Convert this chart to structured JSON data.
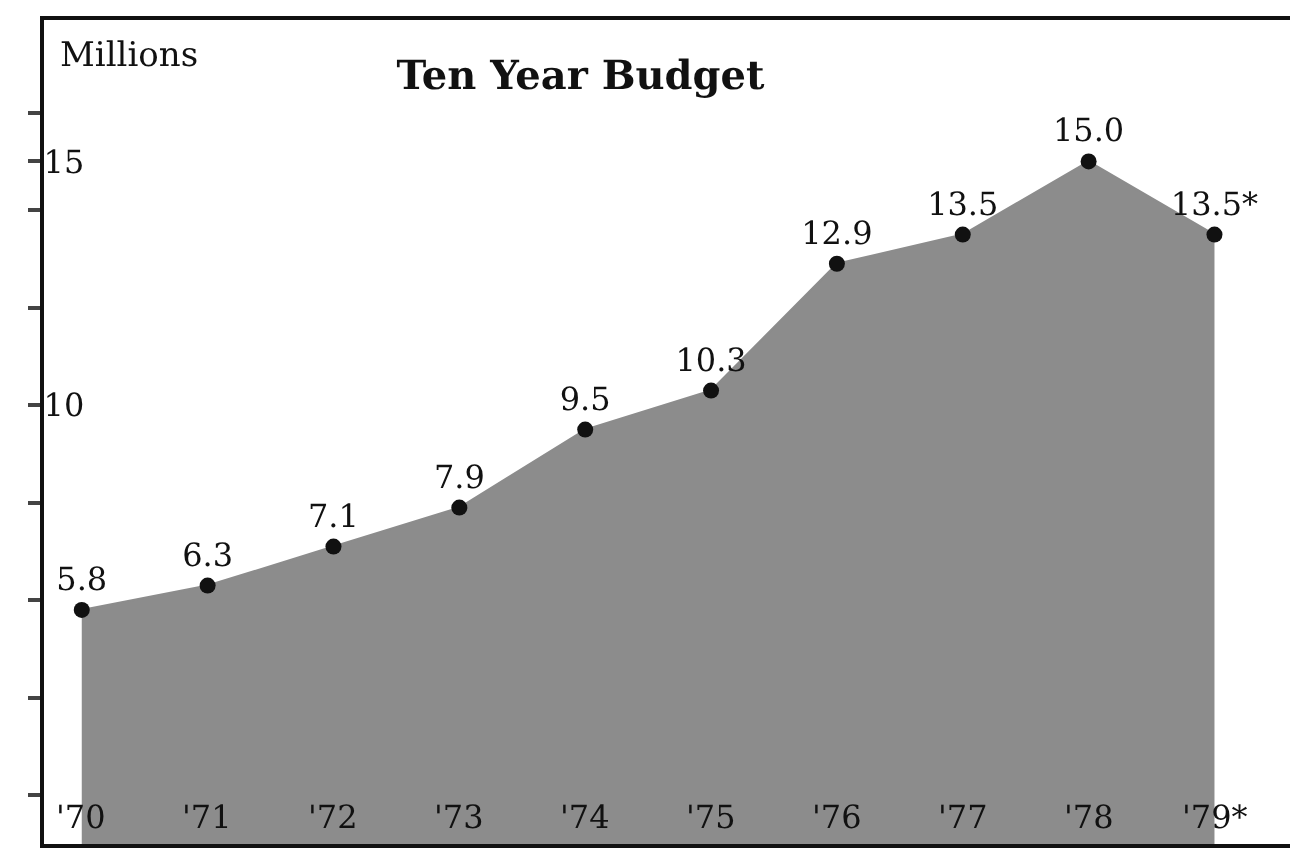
{
  "chart_data": {
    "type": "area",
    "title": "Ten Year Budget",
    "ylabel": "Millions",
    "categories": [
      "'70",
      "'71",
      "'72",
      "'73",
      "'74",
      "'75",
      "'76",
      "'77",
      "'78",
      "'79*"
    ],
    "series": [
      {
        "color": "#8c8c8c",
        "values": [
          5.8,
          6.3,
          7.1,
          7.9,
          9.5,
          10.3,
          12.9,
          13.5,
          15.0,
          13.5
        ],
        "value_labels": [
          "5.8",
          "6.3",
          "7.1",
          "7.9",
          "9.5",
          "10.3",
          "12.9",
          "13.5",
          "15.0",
          "13.5*"
        ]
      }
    ],
    "ylim": [
      1,
      17.9
    ],
    "yticks": [
      {
        "value": 2,
        "label": null
      },
      {
        "value": 4,
        "label": null
      },
      {
        "value": 6,
        "label": null
      },
      {
        "value": 8,
        "label": null
      },
      10,
      {
        "value": 12,
        "label": null
      },
      {
        "value": 14,
        "label": null
      },
      15,
      {
        "value": 16,
        "label": null
      }
    ],
    "marker": "circle"
  }
}
